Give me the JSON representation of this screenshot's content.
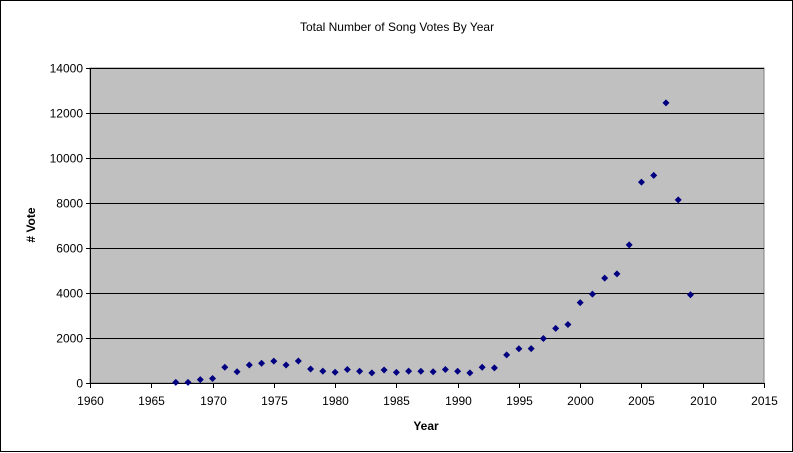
{
  "chart_data": {
    "type": "scatter",
    "title": "Total Number of Song Votes By Year",
    "xlabel": "Year",
    "ylabel": "# Vote",
    "xlim": [
      1960,
      2015
    ],
    "ylim": [
      0,
      14000
    ],
    "x_ticks": [
      "1960",
      "1965",
      "1970",
      "1975",
      "1980",
      "1985",
      "1990",
      "1995",
      "2000",
      "2005",
      "2010",
      "2015"
    ],
    "y_ticks": [
      "0",
      "2000",
      "4000",
      "6000",
      "8000",
      "10000",
      "12000",
      "14000"
    ],
    "grid": true,
    "legend": "none",
    "colors": {
      "plot_background": "#c0c0c0",
      "gridline": "#000000",
      "marker": "#000080"
    },
    "series": [
      {
        "x": [
          1967,
          1968,
          1969,
          1970,
          1971,
          1972,
          1973,
          1974,
          1975,
          1976,
          1977,
          1978,
          1979,
          1980,
          1981,
          1982,
          1983,
          1984,
          1985,
          1986,
          1987,
          1988,
          1989,
          1990,
          1991,
          1992,
          1993,
          1994,
          1995,
          1996,
          1997,
          1998,
          1999,
          2000,
          2001,
          2002,
          2003,
          2004,
          2005,
          2006,
          2007,
          2008,
          2009
        ],
        "y": [
          30,
          30,
          150,
          200,
          700,
          500,
          800,
          880,
          970,
          800,
          980,
          620,
          530,
          480,
          600,
          520,
          450,
          580,
          470,
          530,
          520,
          500,
          600,
          520,
          450,
          700,
          670,
          1250,
          1520,
          1530,
          1980,
          2430,
          2600,
          3570,
          3950,
          4660,
          4850,
          6140,
          8930,
          9230,
          12450,
          8140,
          3920
        ]
      }
    ]
  }
}
